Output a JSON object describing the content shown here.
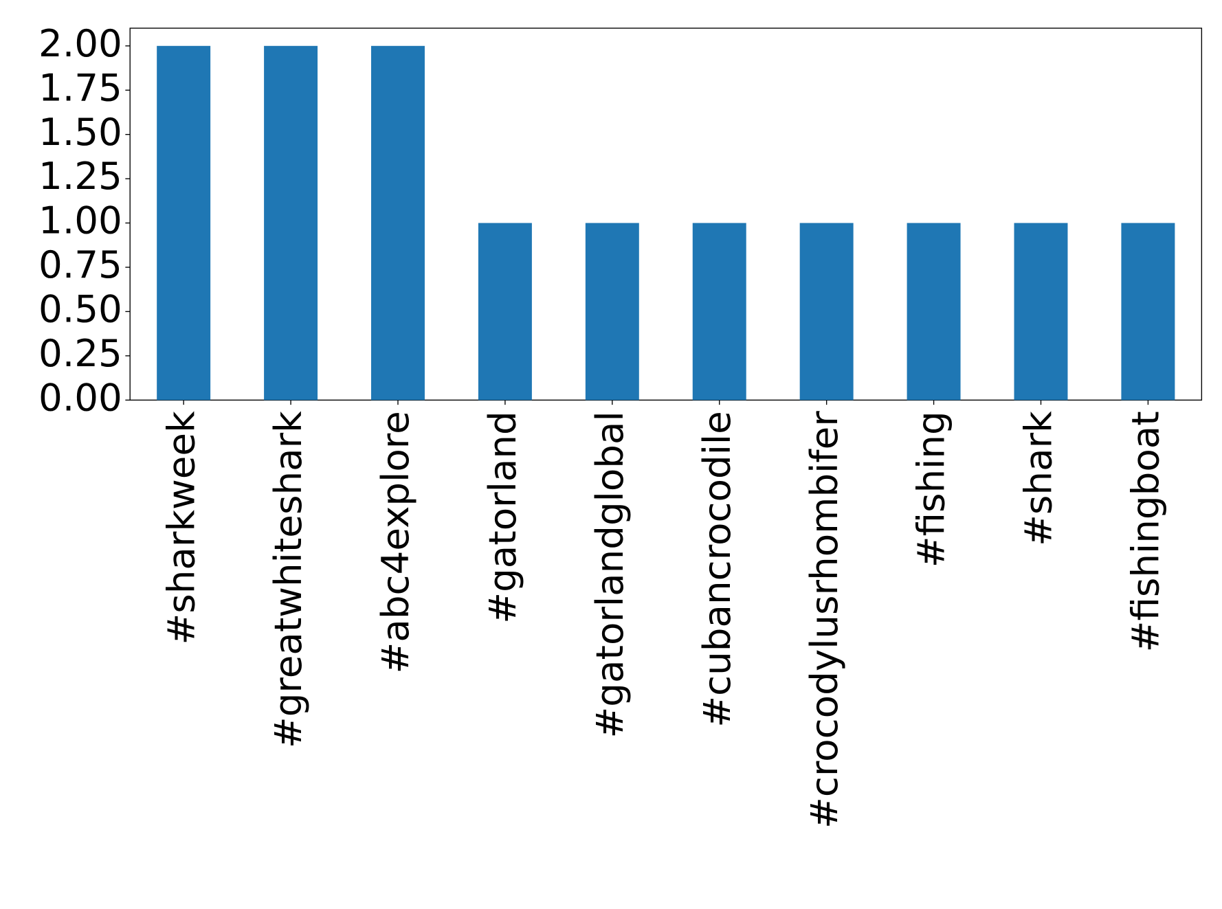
{
  "chart_data": {
    "type": "bar",
    "categories": [
      "#sharkweek",
      "#greatwhiteshark",
      "#abc4explore",
      "#gatorland",
      "#gatorlandglobal",
      "#cubancrocodile",
      "#crocodylusrhombifer",
      "#fishing",
      "#shark",
      "#fishingboat"
    ],
    "values": [
      2,
      2,
      2,
      1,
      1,
      1,
      1,
      1,
      1,
      1
    ],
    "color": "#1f77b4",
    "ylim": [
      0,
      2.1
    ],
    "yticks": [
      {
        "value": 0,
        "label": "0.00"
      },
      {
        "value": 0.25,
        "label": "0.25"
      },
      {
        "value": 0.5,
        "label": "0.50"
      },
      {
        "value": 0.75,
        "label": "0.75"
      },
      {
        "value": 1,
        "label": "1.00"
      },
      {
        "value": 1.25,
        "label": "1.25"
      },
      {
        "value": 1.5,
        "label": "1.50"
      },
      {
        "value": 1.75,
        "label": "1.75"
      },
      {
        "value": 2,
        "label": "2.00"
      }
    ],
    "grid": false
  }
}
